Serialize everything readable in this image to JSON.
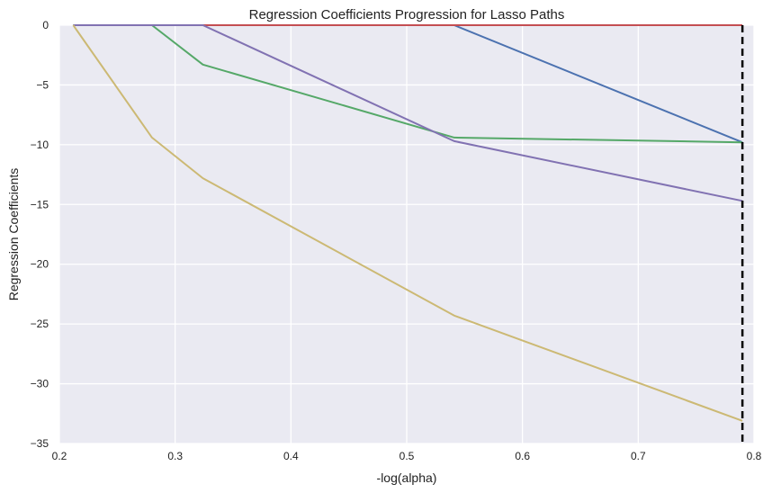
{
  "chart_data": {
    "type": "line",
    "title": "Regression Coefficients Progression for Lasso Paths",
    "xlabel": "-log(alpha)",
    "ylabel": "Regression Coefficients",
    "xlim": [
      0.2,
      0.8
    ],
    "ylim": [
      -35,
      0
    ],
    "xticks": [
      0.2,
      0.3,
      0.4,
      0.5,
      0.6,
      0.7,
      0.8
    ],
    "yticks": [
      0,
      -5,
      -10,
      -15,
      -20,
      -25,
      -30,
      -35
    ],
    "xtick_labels": [
      "0.2",
      "0.3",
      "0.4",
      "0.5",
      "0.6",
      "0.7",
      "0.8"
    ],
    "ytick_labels": [
      "0",
      "−5",
      "−10",
      "−15",
      "−20",
      "−25",
      "−30",
      "−35"
    ],
    "grid": true,
    "background": "#eaeaf2",
    "grid_color": "#ffffff",
    "vline": {
      "x": 0.79,
      "style": "dashed",
      "color": "#000000"
    },
    "series": [
      {
        "name": "coef-1",
        "color": "#4c72b0",
        "x": [
          0.212,
          0.541,
          0.79
        ],
        "y": [
          0,
          0,
          -9.8
        ]
      },
      {
        "name": "coef-2",
        "color": "#55a868",
        "x": [
          0.212,
          0.28,
          0.324,
          0.541,
          0.79
        ],
        "y": [
          0,
          0,
          -3.3,
          -9.4,
          -9.8
        ]
      },
      {
        "name": "coef-3",
        "color": "#c44e52",
        "x": [
          0.212,
          0.79
        ],
        "y": [
          0,
          0
        ]
      },
      {
        "name": "coef-4",
        "color": "#8172b2",
        "x": [
          0.212,
          0.324,
          0.541,
          0.79
        ],
        "y": [
          0,
          0,
          -9.7,
          -14.7
        ]
      },
      {
        "name": "coef-5",
        "color": "#ccb974",
        "x": [
          0.212,
          0.28,
          0.324,
          0.541,
          0.79
        ],
        "y": [
          0,
          -9.4,
          -12.8,
          -24.3,
          -33.1
        ]
      }
    ]
  }
}
